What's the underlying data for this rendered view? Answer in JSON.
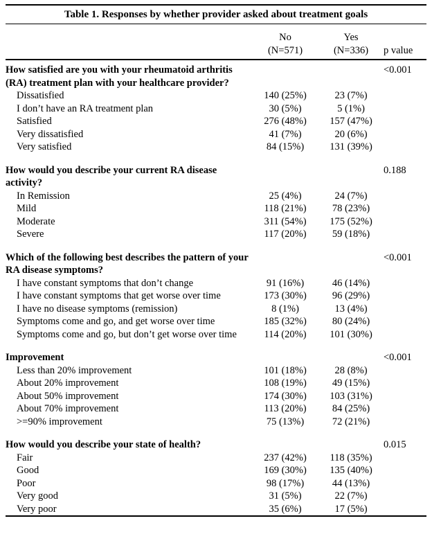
{
  "title": "Table 1. Responses by whether provider asked about treatment goals",
  "header": {
    "no_label": "No",
    "no_n": "(N=571)",
    "yes_label": "Yes",
    "yes_n": "(N=336)",
    "p_label": "p value"
  },
  "sections": [
    {
      "question": "How satisfied are you with your rheumatoid arthritis (RA) treatment plan with your healthcare provider?",
      "p_value": "<0.001",
      "rows": [
        {
          "label": "Dissatisfied",
          "no": "140 (25%)",
          "yes": "23 (7%)"
        },
        {
          "label": "I don’t have an RA treatment plan",
          "no": "30 (5%)",
          "yes": "5 (1%)"
        },
        {
          "label": "Satisfied",
          "no": "276 (48%)",
          "yes": "157 (47%)"
        },
        {
          "label": "Very dissatisfied",
          "no": "41 (7%)",
          "yes": "20 (6%)"
        },
        {
          "label": "Very satisfied",
          "no": "84 (15%)",
          "yes": "131 (39%)"
        }
      ]
    },
    {
      "question": "How would you describe your current RA disease activity?",
      "p_value": "0.188",
      "rows": [
        {
          "label": "In Remission",
          "no": "25 (4%)",
          "yes": "24 (7%)"
        },
        {
          "label": "Mild",
          "no": "118 (21%)",
          "yes": "78 (23%)"
        },
        {
          "label": "Moderate",
          "no": "311 (54%)",
          "yes": "175 (52%)"
        },
        {
          "label": "Severe",
          "no": "117 (20%)",
          "yes": "59 (18%)"
        }
      ]
    },
    {
      "question": "Which of the following best describes the pattern of your RA disease symptoms?",
      "p_value": "<0.001",
      "rows": [
        {
          "label": "I have constant symptoms that don’t change",
          "no": "91 (16%)",
          "yes": "46 (14%)"
        },
        {
          "label": "I have constant symptoms that get worse over time",
          "no": "173 (30%)",
          "yes": "96 (29%)"
        },
        {
          "label": "I have no disease symptoms (remission)",
          "no": "8 (1%)",
          "yes": "13 (4%)"
        },
        {
          "label": "Symptoms come and go, and get worse over time",
          "no": "185 (32%)",
          "yes": "80 (24%)"
        },
        {
          "label": "Symptoms come and go, but don’t get worse over time",
          "no": "114 (20%)",
          "yes": "101 (30%)"
        }
      ]
    },
    {
      "question": "Improvement",
      "p_value": "<0.001",
      "rows": [
        {
          "label": "Less than 20% improvement",
          "no": "101 (18%)",
          "yes": "28 (8%)"
        },
        {
          "label": "About 20% improvement",
          "no": "108 (19%)",
          "yes": "49 (15%)"
        },
        {
          "label": "About 50% improvement",
          "no": "174 (30%)",
          "yes": "103 (31%)"
        },
        {
          "label": "About 70% improvement",
          "no": "113 (20%)",
          "yes": "84 (25%)"
        },
        {
          "label": ">=90% improvement",
          "no": "75 (13%)",
          "yes": "72 (21%)"
        }
      ]
    },
    {
      "question": "How would you describe your state of health?",
      "p_value": "0.015",
      "rows": [
        {
          "label": "Fair",
          "no": "237 (42%)",
          "yes": "118 (35%)"
        },
        {
          "label": "Good",
          "no": "169 (30%)",
          "yes": "135 (40%)"
        },
        {
          "label": "Poor",
          "no": "98 (17%)",
          "yes": "44 (13%)"
        },
        {
          "label": "Very good",
          "no": "31 (5%)",
          "yes": "22 (7%)"
        },
        {
          "label": "Very poor",
          "no": "35 (6%)",
          "yes": "17 (5%)"
        }
      ]
    }
  ]
}
